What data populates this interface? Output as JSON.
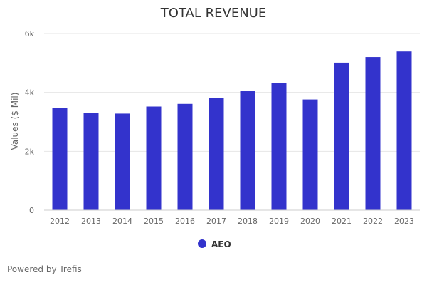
{
  "chart_data": {
    "type": "bar",
    "title": "TOTAL REVENUE",
    "ylabel": "Values ($ Mil)",
    "xlabel": "",
    "categories": [
      "2012",
      "2013",
      "2014",
      "2015",
      "2016",
      "2017",
      "2018",
      "2019",
      "2020",
      "2021",
      "2022",
      "2023"
    ],
    "series": [
      {
        "name": "AEO",
        "color": "#3333cc",
        "values": [
          3470,
          3300,
          3280,
          3520,
          3610,
          3800,
          4040,
          4310,
          3760,
          5010,
          5200,
          5390
        ]
      }
    ],
    "ylim": [
      0,
      6000
    ],
    "yticks": [
      0,
      2000,
      4000,
      6000
    ],
    "ytick_labels": [
      "0",
      "2k",
      "4k",
      "6k"
    ],
    "grid": true,
    "legend_position": "bottom-center"
  },
  "credit": "Powered by Trefis"
}
